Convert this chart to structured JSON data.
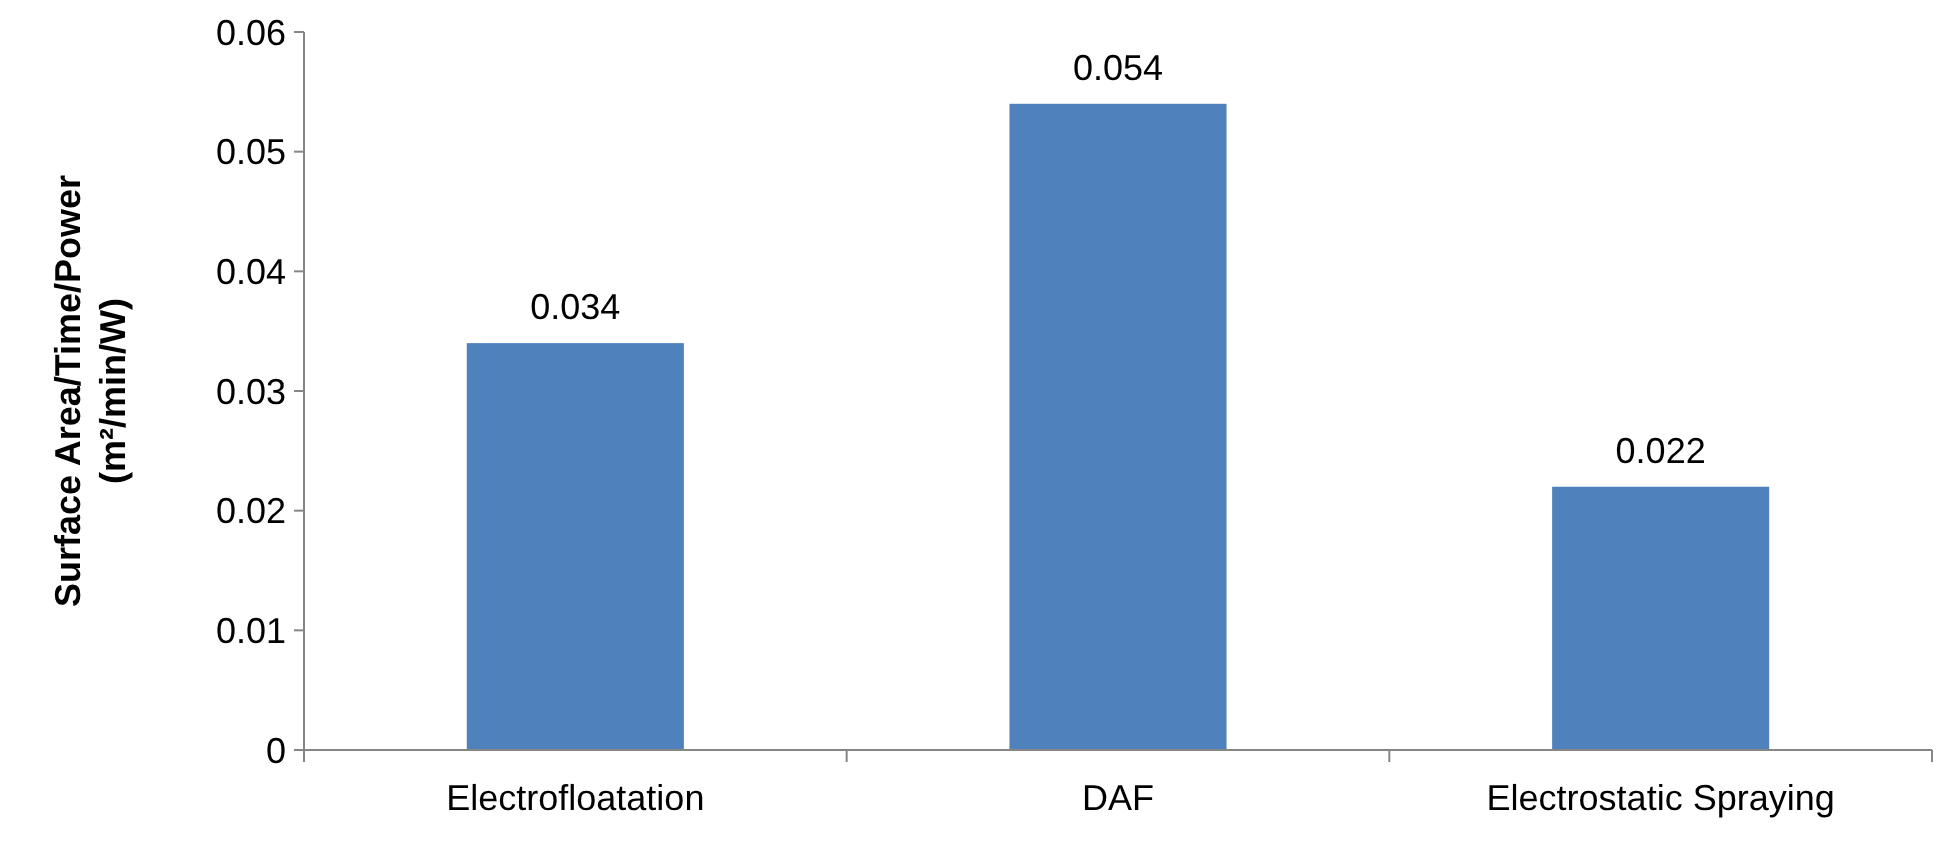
{
  "chart_data": {
    "type": "bar",
    "ylabel": "Surface Area/Time/Power\n(m²/min/W)",
    "categories": [
      "Electrofloatation",
      "DAF",
      "Electrostatic Spraying"
    ],
    "values": [
      0.034,
      0.054,
      0.022
    ],
    "color": "#4f81bd",
    "data_labels": true,
    "ylim": [
      0,
      0.06
    ],
    "yticks": [
      0,
      0.01,
      0.02,
      0.03,
      0.04,
      0.05,
      0.06
    ],
    "grid": false
  }
}
